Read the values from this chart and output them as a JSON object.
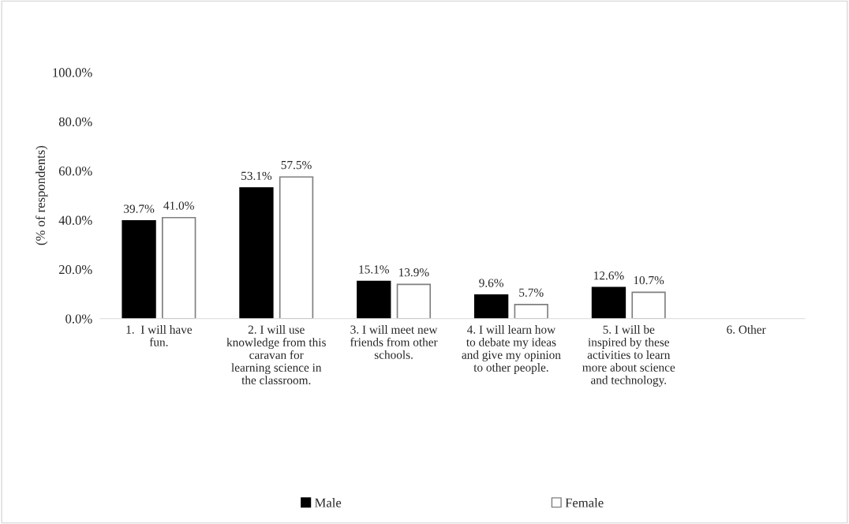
{
  "chart_data": {
    "type": "bar",
    "ylabel": "(% of respondents)",
    "categories": [
      "1.  I will have fun.",
      "2. I will use knowledge from this caravan for learning science in the classroom.",
      "3. I will meet new friends from other schools.",
      "4. I will learn how to debate my ideas and give my opinion to other people.",
      "5. I will be inspired by these activities to learn more about science and technology.",
      "6. Other"
    ],
    "series": [
      {
        "name": "Male",
        "color": "#000000",
        "values": [
          39.7,
          53.1,
          15.1,
          9.6,
          12.6,
          null
        ],
        "value_labels": [
          "39.7%",
          "53.1%",
          "15.1%",
          "9.6%",
          "12.6%",
          null
        ]
      },
      {
        "name": "Female",
        "color": "#ffffff",
        "values": [
          41.0,
          57.5,
          13.9,
          5.7,
          10.7,
          null
        ],
        "value_labels": [
          "41.0%",
          "57.5%",
          "13.9%",
          "5.7%",
          "10.7%",
          null
        ]
      }
    ],
    "ylim": [
      0,
      100
    ],
    "yticks": [
      {
        "value": 0,
        "label": "0.0%"
      },
      {
        "value": 20,
        "label": "20.0%"
      },
      {
        "value": 40,
        "label": "40.0%"
      },
      {
        "value": 60,
        "label": "60.0%"
      },
      {
        "value": 80,
        "label": "80.0%"
      },
      {
        "value": 100,
        "label": "100.0%"
      }
    ],
    "grid": false,
    "legend": "bottom"
  }
}
